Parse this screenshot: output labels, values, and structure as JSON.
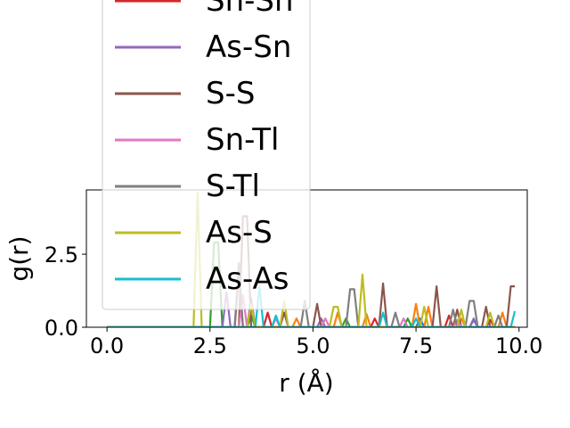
{
  "chart_data": {
    "type": "line",
    "xlabel": "r (Å)",
    "ylabel": "g(r)",
    "xlim": [
      -0.5,
      10.2
    ],
    "ylim": [
      0,
      4.7
    ],
    "x_ticks": [
      0.0,
      2.5,
      5.0,
      7.5,
      10.0
    ],
    "x_tick_labels": [
      "0.0",
      "2.5",
      "5.0",
      "7.5",
      "10.0"
    ],
    "y_ticks": [
      0.0,
      2.5
    ],
    "y_tick_labels": [
      "0.0",
      "2.5"
    ],
    "legend_position": "upper-left, overflowing above the plot",
    "grid": false,
    "series": [
      {
        "name": "",
        "color": "#1f77b4",
        "peaks": [
          [
            7.6,
            0.3
          ],
          [
            8.9,
            0.25
          ]
        ]
      },
      {
        "name": "",
        "color": "#ff7f0e",
        "peaks": [
          [
            4.6,
            0.3
          ],
          [
            5.6,
            0.5
          ],
          [
            6.3,
            0.45
          ],
          [
            7.5,
            0.8
          ],
          [
            7.8,
            0.7
          ],
          [
            8.6,
            0.3
          ],
          [
            9.6,
            0.5
          ]
        ]
      },
      {
        "name": "",
        "color": "#2ca02c",
        "peaks": [
          [
            2.65,
            2.9
          ],
          [
            3.5,
            0.4
          ],
          [
            5.8,
            0.3
          ],
          [
            7.3,
            0.3
          ]
        ]
      },
      {
        "name": "Sn-Sn",
        "color": "#d62728",
        "peaks": [
          [
            3.2,
            1.9
          ],
          [
            3.9,
            0.5
          ],
          [
            6.5,
            0.3
          ],
          [
            8.3,
            0.4
          ],
          [
            9.3,
            0.25
          ]
        ]
      },
      {
        "name": "As-Sn",
        "color": "#9467bd",
        "peaks": [
          [
            2.9,
            1.2
          ],
          [
            3.5,
            1.0
          ],
          [
            5.2,
            0.3
          ],
          [
            8.9,
            0.3
          ]
        ]
      },
      {
        "name": "S-S",
        "color": "#8c564b",
        "peaks": [
          [
            3.35,
            3.8
          ],
          [
            4.3,
            0.5
          ],
          [
            5.1,
            0.8
          ],
          [
            6.7,
            1.5
          ],
          [
            8.0,
            1.4
          ],
          [
            8.5,
            0.6
          ],
          [
            9.2,
            0.7
          ],
          [
            9.85,
            1.4
          ]
        ]
      },
      {
        "name": "Sn-Tl",
        "color": "#e377c2",
        "peaks": [
          [
            3.3,
            1.1
          ],
          [
            4.1,
            0.3
          ],
          [
            5.3,
            0.3
          ],
          [
            7.2,
            0.3
          ],
          [
            8.5,
            0.25
          ]
        ]
      },
      {
        "name": "S-Tl",
        "color": "#7f7f7f",
        "peaks": [
          [
            3.2,
            2.2
          ],
          [
            4.8,
            0.9
          ],
          [
            5.95,
            1.3
          ],
          [
            7.0,
            0.5
          ],
          [
            8.4,
            0.6
          ],
          [
            8.85,
            0.9
          ],
          [
            9.5,
            0.4
          ]
        ]
      },
      {
        "name": "As-S",
        "color": "#bcbd22",
        "peaks": [
          [
            2.2,
            4.6
          ],
          [
            3.5,
            0.8
          ],
          [
            4.3,
            0.9
          ],
          [
            5.55,
            0.7
          ],
          [
            6.2,
            1.8
          ],
          [
            7.7,
            0.7
          ],
          [
            8.6,
            0.6
          ],
          [
            9.3,
            0.5
          ]
        ]
      },
      {
        "name": "As-As",
        "color": "#17becf",
        "peaks": [
          [
            3.7,
            1.4
          ],
          [
            4.1,
            0.4
          ],
          [
            6.7,
            0.5
          ],
          [
            7.5,
            0.3
          ],
          [
            9.9,
            0.55
          ]
        ]
      }
    ]
  }
}
